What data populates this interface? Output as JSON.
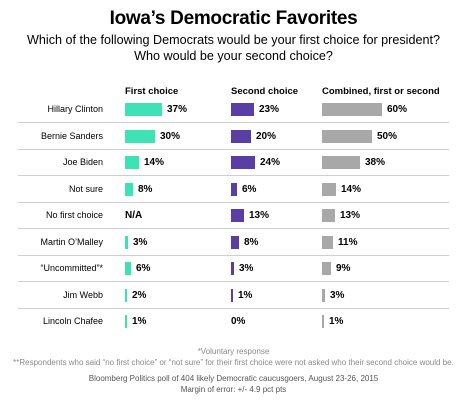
{
  "chart_data": {
    "type": "bar",
    "title": "Iowa’s Democratic Favorites",
    "subtitle": "Which of the following Democrats would be your first choice for president? Who would be your second choice?",
    "categories": [
      "Hillary Clinton",
      "Bernie Sanders",
      "Joe Biden",
      "Not sure",
      "No first choice",
      "Martin O’Malley",
      "“Uncommitted”*",
      "Jim Webb",
      "Lincoln Chafee"
    ],
    "series": [
      {
        "name": "First choice",
        "color": "#3de3b5",
        "values": [
          37,
          30,
          14,
          8,
          null,
          3,
          6,
          2,
          1
        ],
        "labels": [
          "37%",
          "30%",
          "14%",
          "8%",
          "N/A",
          "3%",
          "6%",
          "2%",
          "1%"
        ]
      },
      {
        "name": "Second choice",
        "color": "#5a3ea6",
        "values": [
          23,
          20,
          24,
          6,
          13,
          8,
          3,
          1,
          0
        ],
        "labels": [
          "23%",
          "20%",
          "24%",
          "6%",
          "13%",
          "8%",
          "3%",
          "1%",
          "0%"
        ]
      },
      {
        "name": "Combined, first or second",
        "color": "#a8a8a8",
        "values": [
          60,
          50,
          38,
          14,
          13,
          11,
          9,
          3,
          1
        ],
        "labels": [
          "60%",
          "50%",
          "38%",
          "14%",
          "13%",
          "11%",
          "9%",
          "3%",
          "1%"
        ]
      }
    ],
    "grid": false,
    "legend": "column headers"
  },
  "footnotes": {
    "voluntary": "*Voluntary response",
    "respondents": "**Respondents who said “no first choice” or “not sure” for their first choice were not asked who their second choice would be.",
    "source": "Bloomberg Politics poll of 404 likely Democratic caucusgoers, August 23-26, 2015",
    "margin": "Margin of error: +/- 4.9 pct pts"
  }
}
